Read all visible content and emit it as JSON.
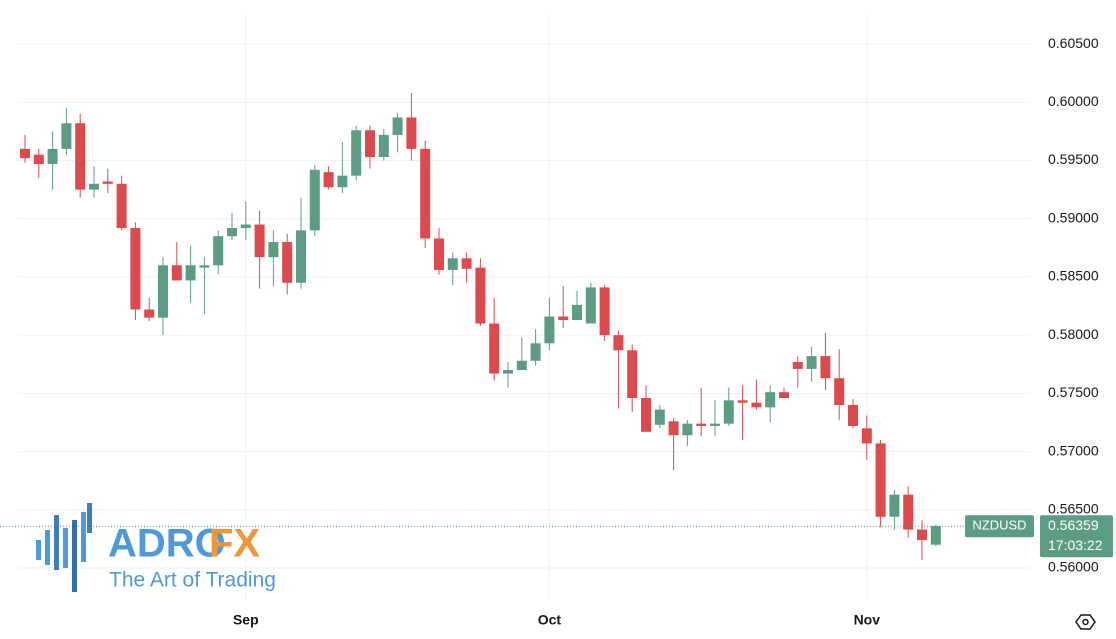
{
  "chart_data": {
    "type": "candlestick",
    "categories": [
      null,
      null,
      null,
      null,
      null,
      null,
      null,
      null,
      null,
      null,
      null,
      null,
      null,
      null,
      null,
      null,
      "Sep",
      null,
      null,
      null,
      null,
      null,
      null,
      null,
      null,
      null,
      null,
      null,
      null,
      null,
      null,
      null,
      null,
      null,
      null,
      null,
      null,
      null,
      "Oct",
      null,
      null,
      null,
      null,
      null,
      null,
      null,
      null,
      null,
      null,
      null,
      null,
      null,
      null,
      null,
      null,
      null,
      null,
      null,
      null,
      null,
      null,
      "Nov",
      null,
      null,
      null,
      null,
      null
    ],
    "series": [
      {
        "name": "NZDUSD",
        "up_color": "#5b9c82",
        "down_color": "#dc4a4d",
        "open": [
          0.596,
          0.5955,
          0.5947,
          0.596,
          0.5982,
          0.5925,
          0.5932,
          0.593,
          0.5892,
          0.5822,
          0.5815,
          0.586,
          0.5847,
          0.5858,
          0.586,
          0.5885,
          0.5892,
          0.5895,
          0.5867,
          0.588,
          0.5845,
          0.589,
          0.594,
          0.5927,
          0.5937,
          0.5976,
          0.5953,
          0.5972,
          0.5987,
          0.596,
          0.5883,
          0.5856,
          0.5866,
          0.5858,
          0.581,
          0.5767,
          0.577,
          0.5778,
          0.5793,
          0.5816,
          0.5813,
          0.581,
          0.5841,
          0.58,
          0.5787,
          0.5746,
          0.5723,
          0.5726,
          0.5714,
          0.5724,
          0.5722,
          0.5724,
          0.5744,
          0.5742,
          0.5738,
          0.5751,
          0.5777,
          0.5771,
          0.5782,
          0.5763,
          0.574,
          0.572,
          0.5707,
          0.5644,
          0.5663,
          0.5633,
          0.562
        ],
        "high": [
          0.5972,
          0.596,
          0.5975,
          0.5995,
          0.599,
          0.5945,
          0.5943,
          0.5937,
          0.5897,
          0.5832,
          0.5867,
          0.588,
          0.5877,
          0.5867,
          0.589,
          0.5905,
          0.5915,
          0.5907,
          0.589,
          0.5887,
          0.5918,
          0.5946,
          0.5945,
          0.5966,
          0.598,
          0.598,
          0.5977,
          0.5991,
          0.6008,
          0.5967,
          0.5892,
          0.5871,
          0.5871,
          0.5866,
          0.5832,
          0.5777,
          0.5798,
          0.5805,
          0.5832,
          0.5842,
          0.5838,
          0.5845,
          0.5843,
          0.5804,
          0.5792,
          0.5757,
          0.574,
          0.5729,
          0.5727,
          0.5755,
          0.5744,
          0.5755,
          0.5757,
          0.5762,
          0.5757,
          0.5755,
          0.5782,
          0.579,
          0.5802,
          0.5788,
          0.5745,
          0.5731,
          0.571,
          0.5667,
          0.567,
          0.5641,
          0.5637
        ],
        "low": [
          0.5948,
          0.5935,
          0.5925,
          0.5955,
          0.5918,
          0.5918,
          0.5922,
          0.589,
          0.5813,
          0.5812,
          0.58,
          0.5847,
          0.5828,
          0.5818,
          0.5852,
          0.5882,
          0.5882,
          0.584,
          0.5842,
          0.5835,
          0.584,
          0.5885,
          0.5925,
          0.5922,
          0.5933,
          0.5943,
          0.595,
          0.5957,
          0.595,
          0.5875,
          0.5852,
          0.5843,
          0.5845,
          0.5808,
          0.5761,
          0.5755,
          0.577,
          0.5774,
          0.5787,
          0.5806,
          0.5813,
          0.581,
          0.5795,
          0.5737,
          0.5734,
          0.5717,
          0.572,
          0.5684,
          0.5705,
          0.5713,
          0.5713,
          0.5722,
          0.571,
          0.5736,
          0.5725,
          0.5746,
          0.5755,
          0.576,
          0.5753,
          0.5727,
          0.572,
          0.5693,
          0.5635,
          0.5633,
          0.5626,
          0.5607,
          0.5619
        ],
        "close": [
          0.5952,
          0.5947,
          0.596,
          0.5982,
          0.5925,
          0.593,
          0.593,
          0.5892,
          0.5822,
          0.5815,
          0.586,
          0.5847,
          0.586,
          0.586,
          0.5885,
          0.5892,
          0.5895,
          0.5867,
          0.588,
          0.5845,
          0.589,
          0.5942,
          0.5927,
          0.5937,
          0.5976,
          0.5953,
          0.5972,
          0.5987,
          0.596,
          0.5883,
          0.5856,
          0.5866,
          0.5857,
          0.581,
          0.5767,
          0.577,
          0.5778,
          0.5793,
          0.5816,
          0.5813,
          0.5826,
          0.5841,
          0.58,
          0.5787,
          0.5746,
          0.5717,
          0.5736,
          0.5714,
          0.5724,
          0.5722,
          0.5724,
          0.5744,
          0.5742,
          0.5738,
          0.5751,
          0.5746,
          0.5771,
          0.5782,
          0.5763,
          0.574,
          0.5722,
          0.5707,
          0.5644,
          0.5663,
          0.5633,
          0.5624,
          0.5636
        ]
      }
    ],
    "last_price": {
      "value": 0.56359,
      "countdown": "17:03:22"
    },
    "ylim": [
      0.55725,
      0.6075
    ],
    "yticks": [
      {
        "value": 0.56,
        "label": "0.56000"
      },
      {
        "value": 0.565,
        "label": "0.56500"
      },
      {
        "value": 0.57,
        "label": "0.57000"
      },
      {
        "value": 0.575,
        "label": "0.57500"
      },
      {
        "value": 0.58,
        "label": "0.58000"
      },
      {
        "value": 0.585,
        "label": "0.58500"
      },
      {
        "value": 0.59,
        "label": "0.59000"
      },
      {
        "value": 0.595,
        "label": "0.59500"
      },
      {
        "value": 0.6,
        "label": "0.60000"
      },
      {
        "value": 0.605,
        "label": "0.60500"
      }
    ],
    "grid": true
  },
  "watermark": {
    "brand_a": "ADRO",
    "brand_b": "FX",
    "tagline": "The Art of Trading"
  }
}
